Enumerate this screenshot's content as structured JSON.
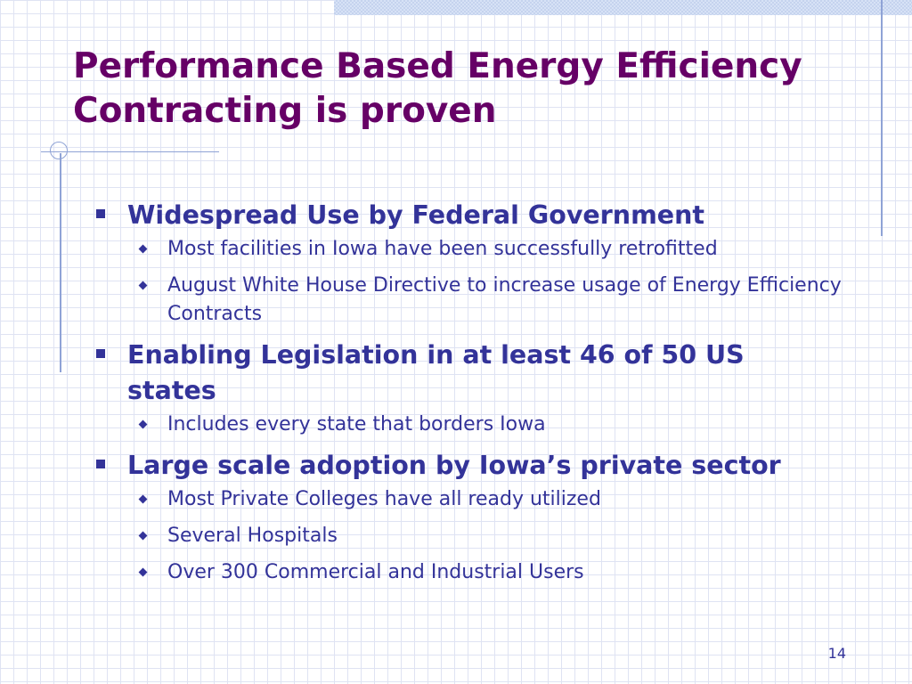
{
  "slide": {
    "title_line1": "Performance Based Energy Efficiency",
    "title_line2": "Contracting is proven",
    "page_number": "14",
    "colors": {
      "title": "#660066",
      "text": "#333399",
      "grid": "#dfe3f3",
      "accent_line": "#8fa3d6"
    }
  },
  "bullets": [
    {
      "text": "Widespread Use by Federal Government",
      "icon": "square-bullet-icon",
      "sub": [
        {
          "text": "Most facilities in Iowa have been successfully retrofitted",
          "icon": "diamond-bullet-icon"
        },
        {
          "text": "August White House Directive to increase usage of Energy Efficiency Contracts",
          "icon": "diamond-bullet-icon"
        }
      ]
    },
    {
      "text": "Enabling Legislation in at least 46 of 50 US states",
      "icon": "square-bullet-icon",
      "sub": [
        {
          "text": "Includes every state that borders Iowa",
          "icon": "diamond-bullet-icon"
        }
      ]
    },
    {
      "text": "Large scale adoption by Iowa’s private sector",
      "icon": "square-bullet-icon",
      "sub": [
        {
          "text": "Most Private Colleges have all ready utilized",
          "icon": "diamond-bullet-icon"
        },
        {
          "text": "Several Hospitals",
          "icon": "diamond-bullet-icon"
        },
        {
          "text": "Over 300 Commercial and Industrial Users",
          "icon": "diamond-bullet-icon"
        }
      ]
    }
  ]
}
